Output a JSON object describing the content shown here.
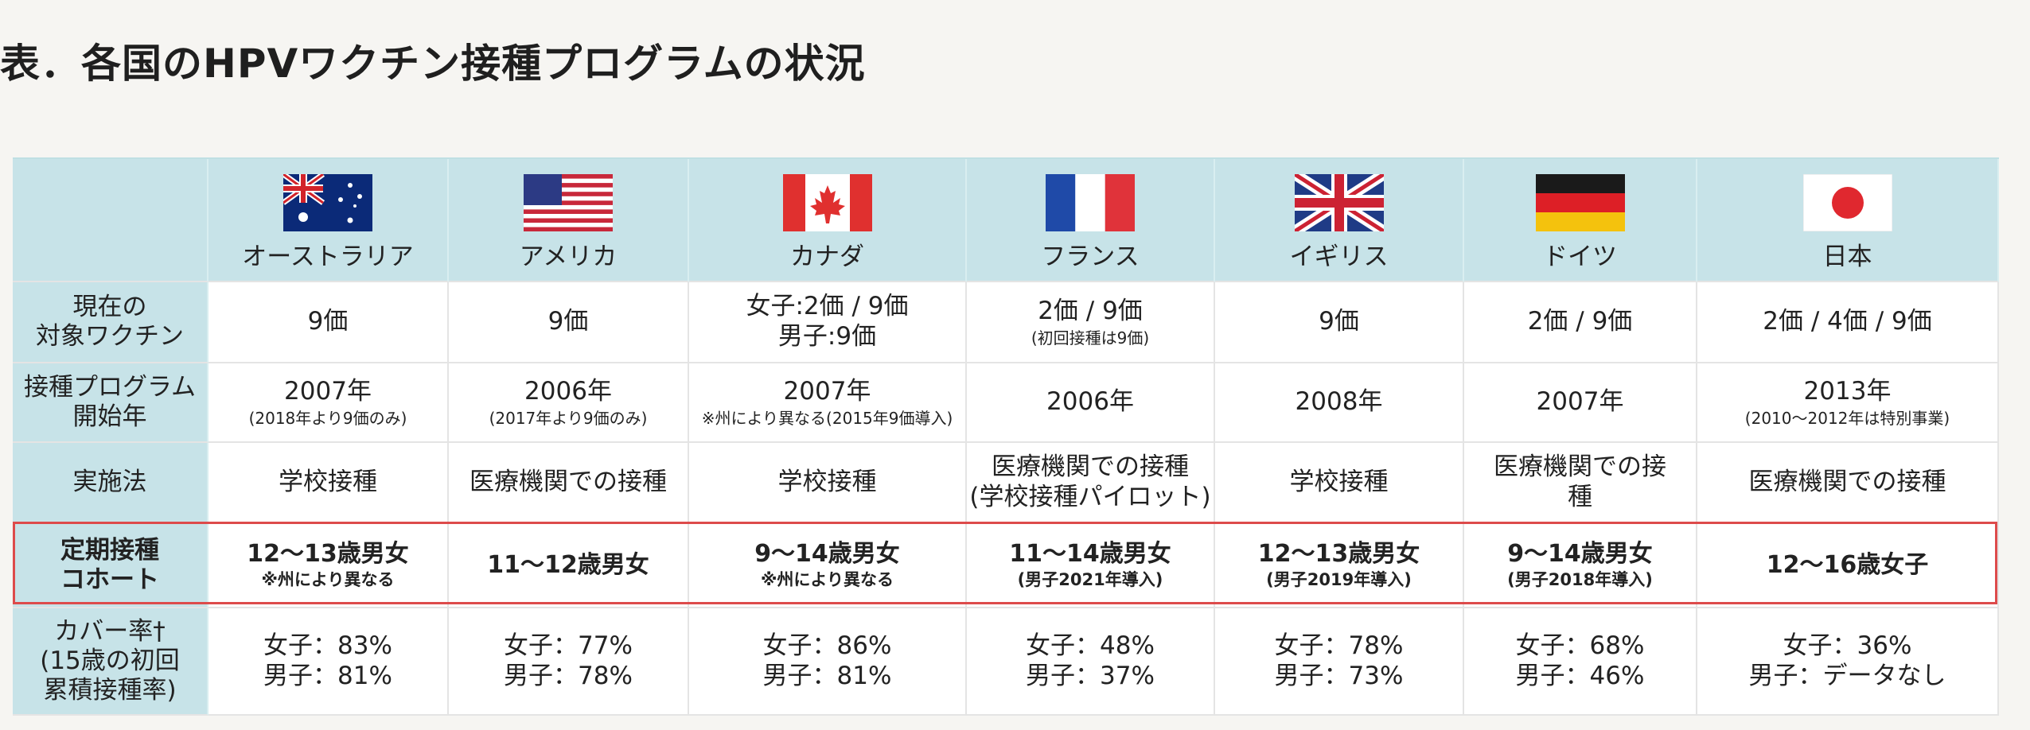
{
  "title": "表．各国のHPVワクチン接種プログラムの状況",
  "countries": [
    {
      "name": "オーストラリア",
      "flag": "australia-flag"
    },
    {
      "name": "アメリカ",
      "flag": "usa-flag"
    },
    {
      "name": "カナダ",
      "flag": "canada-flag"
    },
    {
      "name": "フランス",
      "flag": "france-flag"
    },
    {
      "name": "イギリス",
      "flag": "uk-flag"
    },
    {
      "name": "ドイツ",
      "flag": "germany-flag"
    },
    {
      "name": "日本",
      "flag": "japan-flag"
    }
  ],
  "rows": [
    {
      "header": [
        "現在の",
        "対象ワクチン"
      ],
      "cells": [
        {
          "main": [
            "9価"
          ]
        },
        {
          "main": [
            "9価"
          ]
        },
        {
          "main": [
            "女子:2価 / 9価",
            "男子:9価"
          ]
        },
        {
          "main": [
            "2価 / 9価"
          ],
          "note": "(初回接種は9価)"
        },
        {
          "main": [
            "9価"
          ]
        },
        {
          "main": [
            "2価 / 9価"
          ]
        },
        {
          "main": [
            "2価 / 4価 / 9価"
          ]
        }
      ]
    },
    {
      "header": [
        "接種プログラム",
        "開始年"
      ],
      "cells": [
        {
          "main": [
            "2007年"
          ],
          "note": "(2018年より9価のみ)"
        },
        {
          "main": [
            "2006年"
          ],
          "note": "(2017年より9価のみ)"
        },
        {
          "main": [
            "2007年"
          ],
          "note": "※州により異なる(2015年9価導入)"
        },
        {
          "main": [
            "2006年"
          ]
        },
        {
          "main": [
            "2008年"
          ]
        },
        {
          "main": [
            "2007年"
          ]
        },
        {
          "main": [
            "2013年"
          ],
          "note": "(2010～2012年は特別事業)"
        }
      ]
    },
    {
      "header": [
        "実施法"
      ],
      "cells": [
        {
          "main": [
            "学校接種"
          ]
        },
        {
          "main": [
            "医療機関での接種"
          ]
        },
        {
          "main": [
            "学校接種"
          ]
        },
        {
          "main": [
            "医療機関での接種",
            "(学校接種パイロット)"
          ]
        },
        {
          "main": [
            "学校接種"
          ]
        },
        {
          "main": [
            "医療機関での接",
            "種"
          ]
        },
        {
          "main": [
            "医療機関での接種"
          ]
        }
      ]
    },
    {
      "header": [
        "定期接種",
        "コホート"
      ],
      "bold": true,
      "cells": [
        {
          "main": [
            "12～13歳男女"
          ],
          "note": "※州により異なる"
        },
        {
          "main": [
            "11～12歳男女"
          ]
        },
        {
          "main": [
            "9～14歳男女"
          ],
          "note": "※州により異なる"
        },
        {
          "main": [
            "11～14歳男女"
          ],
          "note": "(男子2021年導入)"
        },
        {
          "main": [
            "12～13歳男女"
          ],
          "note": "(男子2019年導入)"
        },
        {
          "main": [
            "9～14歳男女"
          ],
          "note": "(男子2018年導入)"
        },
        {
          "main": [
            "12～16歳女子"
          ]
        }
      ]
    },
    {
      "header": [
        "カバー率†",
        "(15歳の初回",
        "累積接種率)"
      ],
      "cells": [
        {
          "main": [
            "女子：83%",
            "男子：81%"
          ]
        },
        {
          "main": [
            "女子：77%",
            "男子：78%"
          ]
        },
        {
          "main": [
            "女子：86%",
            "男子：81%"
          ]
        },
        {
          "main": [
            "女子：48%",
            "男子：37%"
          ]
        },
        {
          "main": [
            "女子：78%",
            "男子：73%"
          ]
        },
        {
          "main": [
            "女子：68%",
            "男子：46%"
          ]
        },
        {
          "main": [
            "女子：36%",
            "男子：データなし"
          ]
        }
      ]
    }
  ],
  "colors": {
    "header_bg": "#c7e3e8",
    "highlight_border": "#dd4b4b",
    "cell_bg": "#ffffff"
  }
}
